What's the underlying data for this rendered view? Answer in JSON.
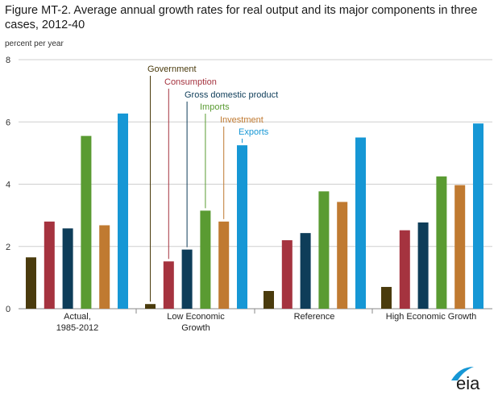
{
  "title": "Figure MT-2. Average annual growth rates for real output and its major components in three cases, 2012-40",
  "colors": {
    "Government": "#4a3b0d",
    "Consumption": "#a5333f",
    "Gross domestic product": "#0e3d59",
    "Imports": "#5a9b32",
    "Investment": "#c07a31",
    "Exports": "#1697d5"
  },
  "logo_text": "eia",
  "chart_data": {
    "type": "bar",
    "title": "Figure MT-2. Average annual growth rates for real output and its major components in three cases, 2012-40",
    "ylabel": "percent per year",
    "xlabel": "",
    "ylim": [
      0,
      8
    ],
    "yticks": [
      0,
      2,
      4,
      6,
      8
    ],
    "grid": true,
    "categories": [
      [
        "Actual,",
        "1985-2012"
      ],
      [
        "Low Economic",
        "Growth"
      ],
      [
        "Reference"
      ],
      [
        "High Economic Growth"
      ]
    ],
    "series": [
      {
        "name": "Government",
        "values": [
          1.65,
          0.15,
          0.57,
          0.7
        ]
      },
      {
        "name": "Consumption",
        "values": [
          2.8,
          1.52,
          2.2,
          2.52
        ]
      },
      {
        "name": "Gross domestic product",
        "values": [
          2.58,
          1.9,
          2.43,
          2.77
        ]
      },
      {
        "name": "Imports",
        "values": [
          5.55,
          3.15,
          3.77,
          4.25
        ]
      },
      {
        "name": "Investment",
        "values": [
          2.68,
          2.8,
          3.43,
          3.97
        ]
      },
      {
        "name": "Exports",
        "values": [
          6.27,
          5.25,
          5.5,
          5.95
        ]
      }
    ],
    "legend_placement": "annotated-inline"
  }
}
